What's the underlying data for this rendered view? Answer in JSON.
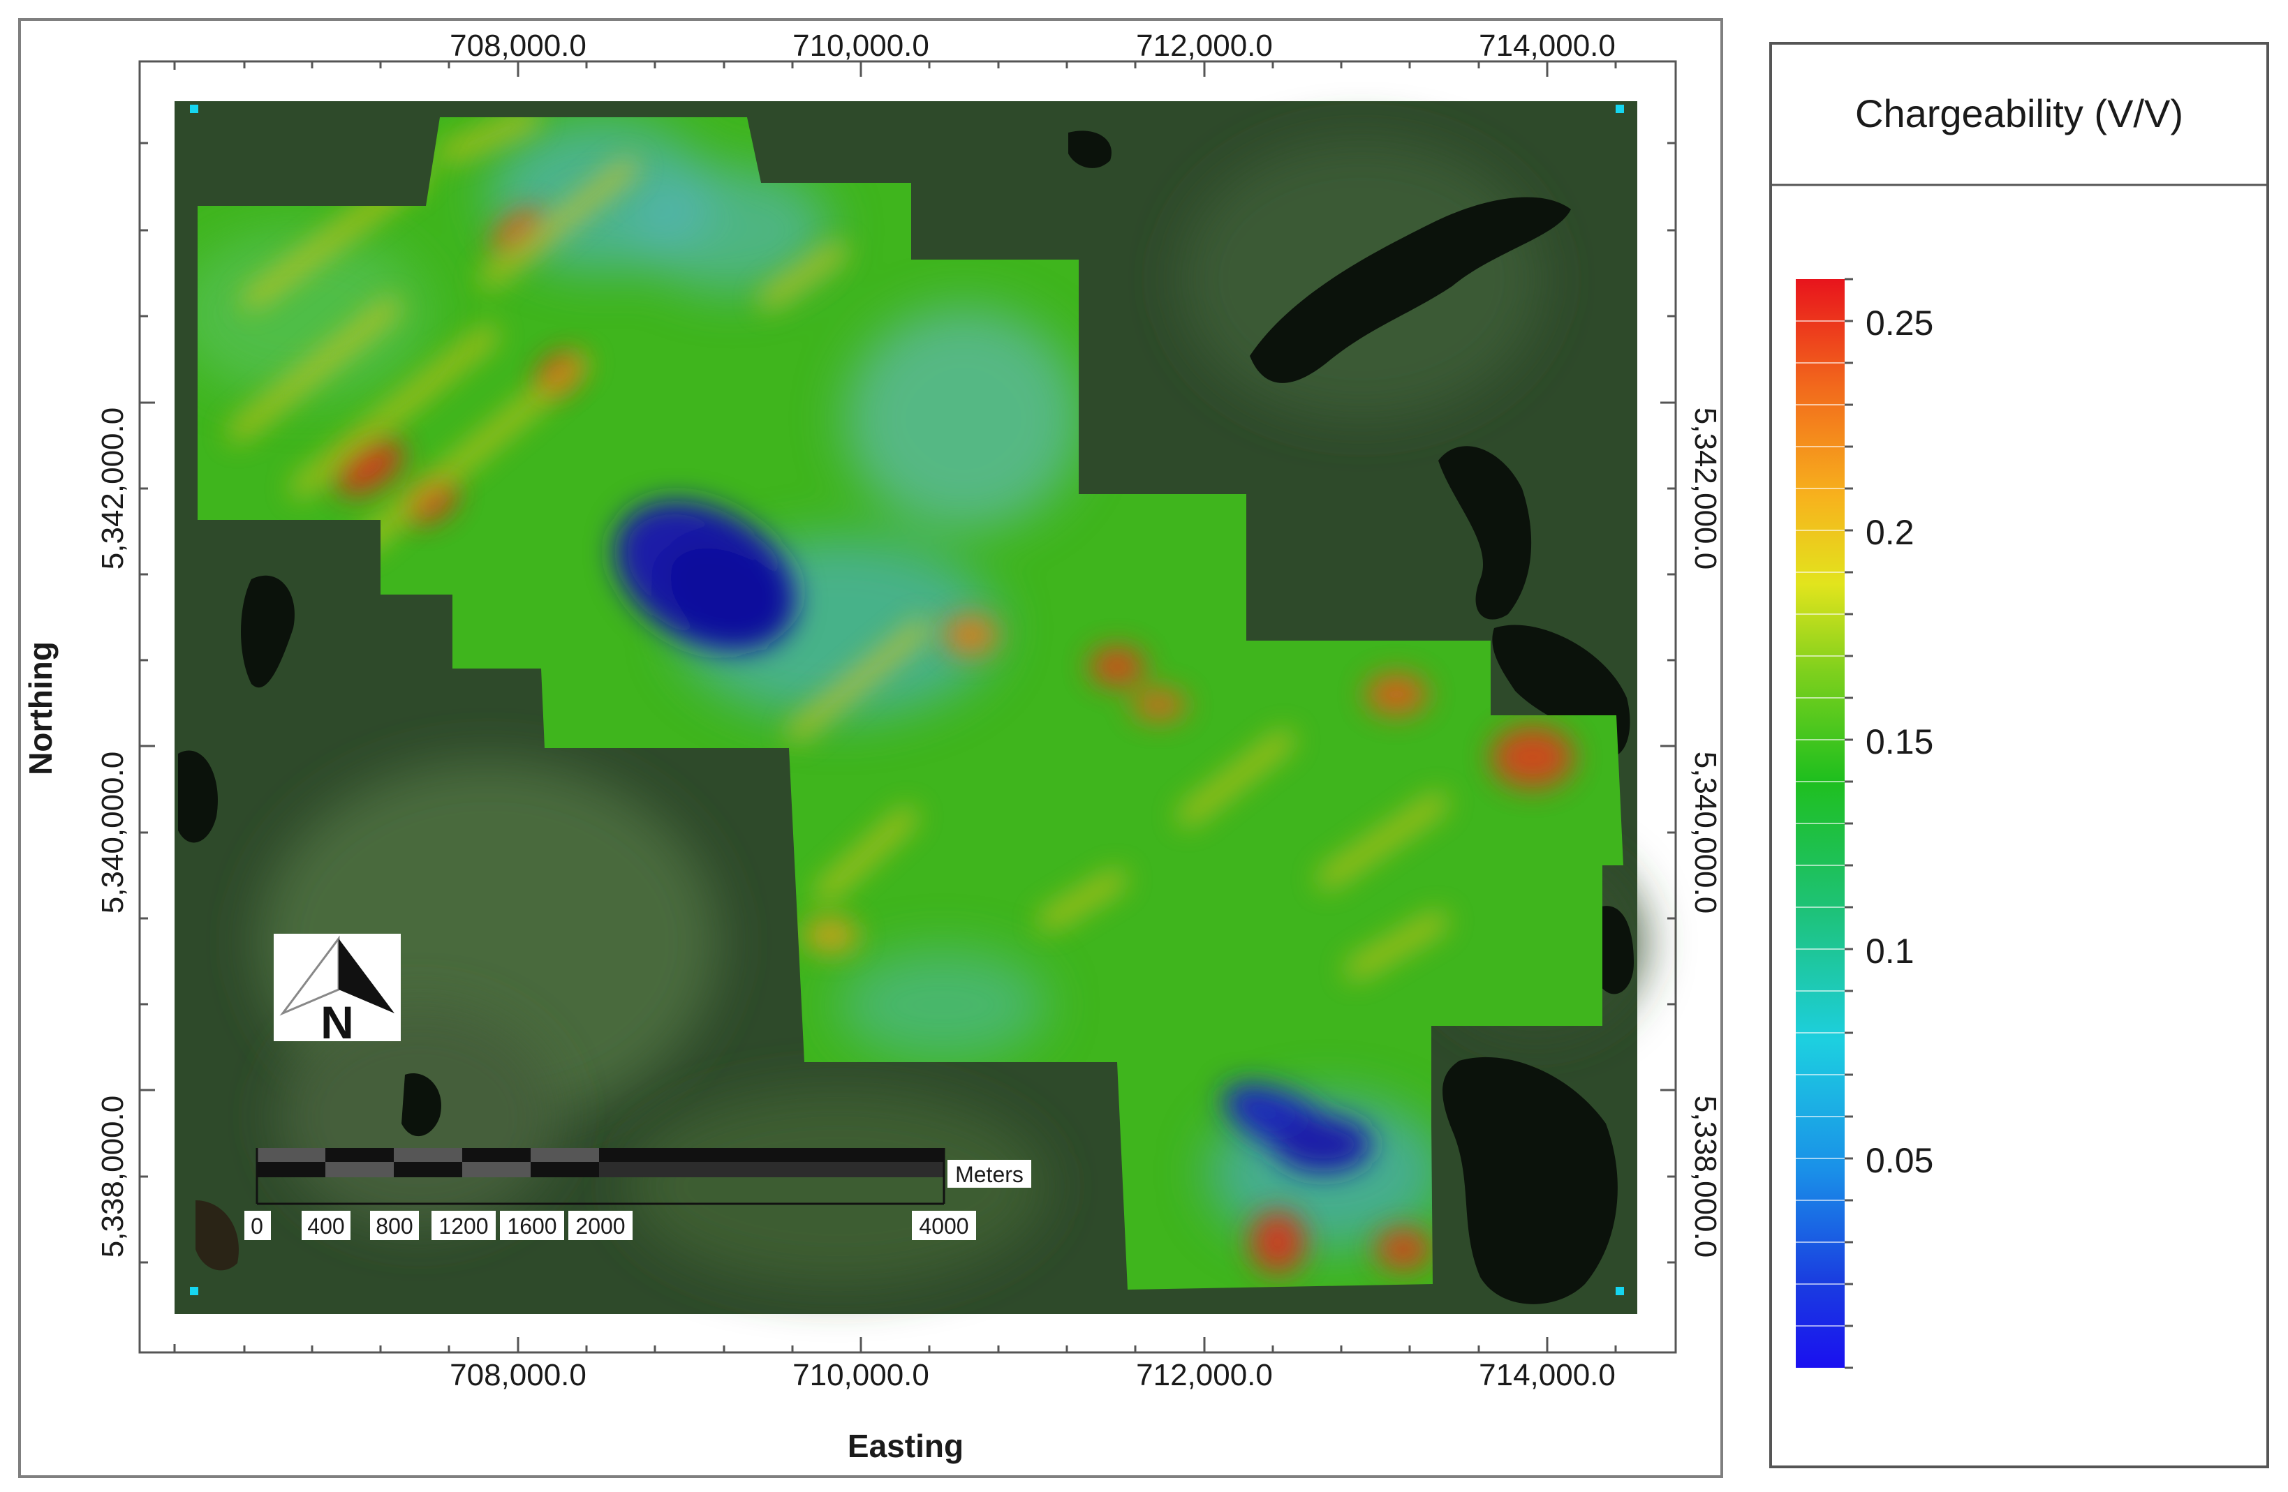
{
  "map": {
    "x_axis_title": "Easting",
    "y_axis_title": "Northing",
    "x_ticks": [
      "708,000.0",
      "710,000.0",
      "712,000.0",
      "714,000.0"
    ],
    "y_ticks": [
      "5,342,000.0",
      "5,340,000.0",
      "5,338,000.0"
    ],
    "north_arrow_label": "N",
    "scale_bar": {
      "unit": "Meters",
      "labels": [
        "0",
        "400",
        "800",
        "1200",
        "1600",
        "2000",
        "4000"
      ]
    }
  },
  "legend": {
    "title": "Chargeability (V/V)",
    "ticks": [
      "0.25",
      "0.2",
      "0.15",
      "0.1",
      "0.05"
    ],
    "colors": [
      "#e8141c",
      "#f26a1c",
      "#f7b21d",
      "#e2e41d",
      "#7fd01d",
      "#1fbf1e",
      "#1ec278",
      "#1dcfe0",
      "#1a8fe8",
      "#1a3ee0",
      "#1a10f0"
    ]
  }
}
